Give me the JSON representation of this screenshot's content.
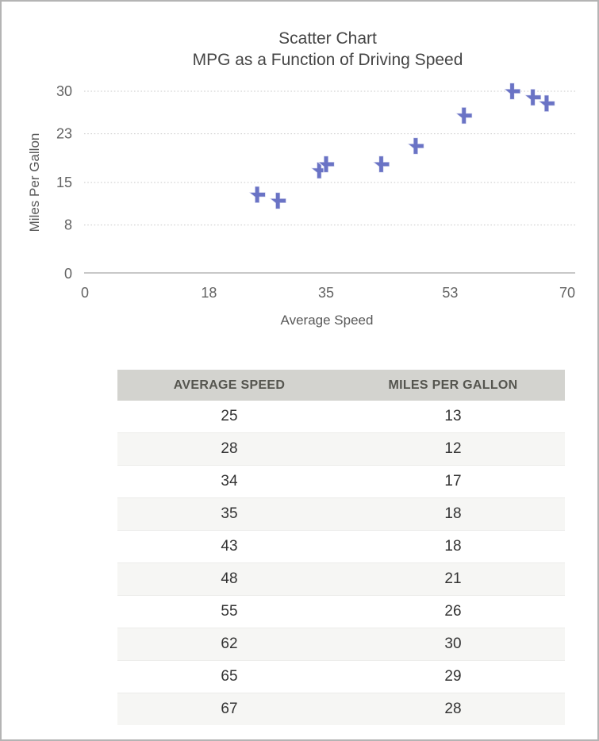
{
  "chart_data": {
    "type": "scatter",
    "title": "Scatter Chart",
    "subtitle": "MPG as a Function of Driving Speed",
    "xlabel": "Average Speed",
    "ylabel": "Miles Per Gallon",
    "x": [
      25,
      28,
      34,
      35,
      43,
      48,
      55,
      62,
      65,
      67
    ],
    "y": [
      13,
      12,
      17,
      18,
      18,
      21,
      26,
      30,
      29,
      28
    ],
    "xlim": [
      0,
      70
    ],
    "ylim": [
      0,
      30
    ],
    "x_ticks": [
      0,
      18,
      35,
      53,
      70
    ],
    "y_ticks": [
      0,
      8,
      15,
      23,
      30
    ],
    "grid": "horizontal-dotted",
    "legend": "none",
    "marker": "plus",
    "marker_color": "#6A73C5"
  },
  "table": {
    "columns": [
      "AVERAGE SPEED",
      "MILES PER GALLON"
    ],
    "rows": [
      [
        25,
        13
      ],
      [
        28,
        12
      ],
      [
        34,
        17
      ],
      [
        35,
        18
      ],
      [
        43,
        18
      ],
      [
        48,
        21
      ],
      [
        55,
        26
      ],
      [
        62,
        30
      ],
      [
        65,
        29
      ],
      [
        67,
        28
      ]
    ]
  },
  "colors": {
    "marker": "#6A73C5",
    "page-border": "#b4b4b4",
    "header-bg": "#d3d3cf",
    "header-text": "#55554f",
    "row-alt-bg": "#f6f6f4",
    "row-border": "#ececea",
    "cell-text": "#333333",
    "grid-line": "#c9c9c9",
    "axis-line": "#c8c8c8",
    "tick-text": "#636363",
    "axis-title-text": "#595959",
    "chart-title-text": "#454545"
  }
}
